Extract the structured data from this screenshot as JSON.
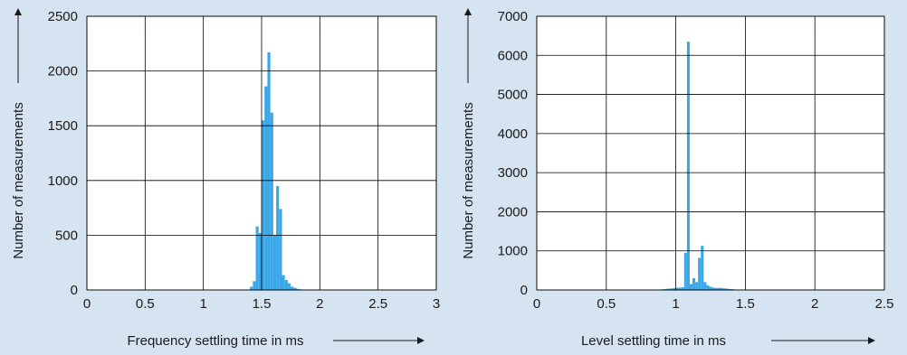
{
  "colors": {
    "background": "#d6e3f1",
    "plot_background": "#ffffff",
    "bar": "#3aa8e8",
    "grid": "#000000",
    "text": "#1a1a1a"
  },
  "chart_data": [
    {
      "type": "bar",
      "title": "",
      "xlabel": "Frequency settling time in ms",
      "ylabel": "Number of measurements",
      "xlim": [
        0,
        3
      ],
      "ylim": [
        0,
        2500
      ],
      "xticks": [
        "0",
        "0.5",
        "1",
        "1.5",
        "2",
        "2.5",
        "3"
      ],
      "yticks": [
        "0",
        "500",
        "1000",
        "1500",
        "2000",
        "2500"
      ],
      "grid": true,
      "bin_width": 0.025,
      "bins": [
        [
          1.4,
          30
        ],
        [
          1.425,
          80
        ],
        [
          1.45,
          580
        ],
        [
          1.475,
          520
        ],
        [
          1.5,
          1550
        ],
        [
          1.525,
          1860
        ],
        [
          1.55,
          2170
        ],
        [
          1.575,
          1620
        ],
        [
          1.6,
          500
        ],
        [
          1.625,
          950
        ],
        [
          1.65,
          740
        ],
        [
          1.675,
          135
        ],
        [
          1.7,
          90
        ],
        [
          1.725,
          60
        ],
        [
          1.75,
          30
        ],
        [
          1.775,
          20
        ],
        [
          1.8,
          10
        ],
        [
          1.825,
          5
        ]
      ]
    },
    {
      "type": "bar",
      "title": "",
      "xlabel": "Level settling time in ms",
      "ylabel": "Number of measurements",
      "xlim": [
        0,
        2.5
      ],
      "ylim": [
        0,
        7000
      ],
      "xticks": [
        "0",
        "0.5",
        "1",
        "1.5",
        "2",
        "2.5"
      ],
      "yticks": [
        "0",
        "1000",
        "2000",
        "3000",
        "4000",
        "5000",
        "6000",
        "7000"
      ],
      "grid": true,
      "bin_width": 0.02,
      "bins": [
        [
          0.9,
          20
        ],
        [
          0.92,
          25
        ],
        [
          0.94,
          35
        ],
        [
          0.96,
          40
        ],
        [
          0.98,
          50
        ],
        [
          1.0,
          60
        ],
        [
          1.02,
          60
        ],
        [
          1.04,
          70
        ],
        [
          1.06,
          950
        ],
        [
          1.08,
          6350
        ],
        [
          1.1,
          150
        ],
        [
          1.12,
          300
        ],
        [
          1.14,
          200
        ],
        [
          1.16,
          820
        ],
        [
          1.18,
          1130
        ],
        [
          1.2,
          200
        ],
        [
          1.22,
          120
        ],
        [
          1.24,
          80
        ],
        [
          1.26,
          60
        ],
        [
          1.28,
          50
        ],
        [
          1.3,
          55
        ],
        [
          1.32,
          50
        ],
        [
          1.34,
          40
        ],
        [
          1.36,
          35
        ],
        [
          1.38,
          25
        ],
        [
          1.4,
          20
        ],
        [
          1.42,
          10
        ]
      ]
    }
  ]
}
